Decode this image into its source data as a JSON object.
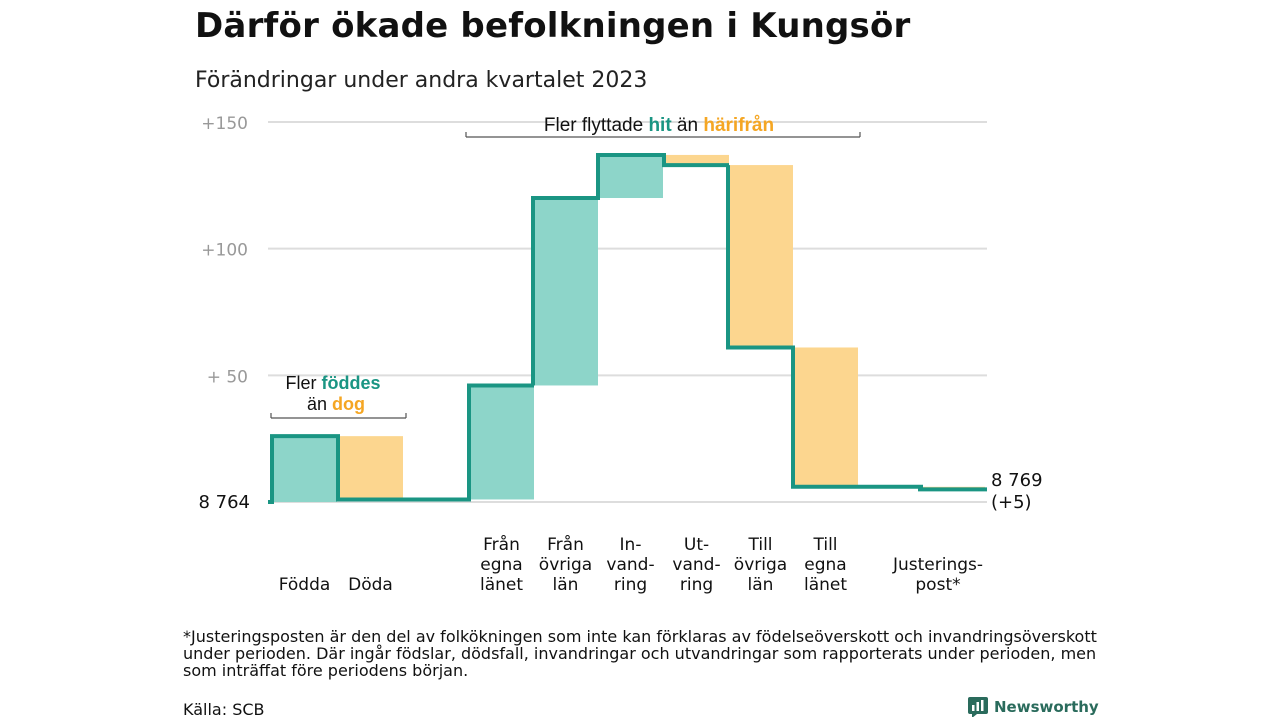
{
  "title": "Därför ökade befolkningen i Kungsör",
  "subtitle": "Förändringar under andra kvartalet 2023",
  "footnote": "*Justeringsposten är den del av folkökningen som inte kan förklaras av födelseöverskott och invandringsöverskott under perioden. Där ingår födslar, dödsfall, invandringar och utvandringar som rapporterats under perioden, men som inträffat före periodens början.",
  "source": "Källa: SCB",
  "logo_text": "Newsworthy",
  "colors": {
    "increase": "#8dd5c9",
    "decrease": "#fcd68f",
    "line": "#1a9583",
    "grid": "#dddddd",
    "teal_text": "#1a9583",
    "orange_text": "#f5a623"
  },
  "chart_data": {
    "type": "waterfall",
    "start_label": "8  764",
    "start_value": 8764,
    "end_label": [
      "8 769",
      "(+5)"
    ],
    "end_value": 8769,
    "y_ticks": [
      {
        "value": 150,
        "label": "+150"
      },
      {
        "value": 100,
        "label": "+100"
      },
      {
        "value": 50,
        "label": "+  50"
      }
    ],
    "ylim": [
      0,
      150
    ],
    "categories": [
      {
        "label": [
          "Födda"
        ],
        "type": "increase",
        "value": 26
      },
      {
        "label": [
          "Döda"
        ],
        "type": "decrease",
        "value": -25
      },
      {
        "label": [],
        "type": "gap",
        "value": 0
      },
      {
        "label": [
          "Från",
          "egna",
          "länet"
        ],
        "type": "increase",
        "value": 45
      },
      {
        "label": [
          "Från",
          "övriga",
          "län"
        ],
        "type": "increase",
        "value": 74
      },
      {
        "label": [
          "In-",
          "vand-",
          "ring"
        ],
        "type": "increase",
        "value": 17
      },
      {
        "label": [
          "Ut-",
          "vand-",
          "ring"
        ],
        "type": "decrease",
        "value": -4
      },
      {
        "label": [
          "Till",
          "övriga",
          "län"
        ],
        "type": "decrease",
        "value": -72
      },
      {
        "label": [
          "Till",
          "egna",
          "länet"
        ],
        "type": "decrease",
        "value": -55
      },
      {
        "label": [],
        "type": "gap",
        "value": 0
      },
      {
        "label": [
          "Justerings-",
          "post*"
        ],
        "type": "decrease",
        "value": -1
      }
    ],
    "annotations": {
      "births": {
        "line1_pre": "Fler ",
        "line1_hl": "föddes",
        "line2_pre": "än ",
        "line2_hl": "dog"
      },
      "migration": {
        "pre": "Fler flyttade ",
        "hl1": "hit",
        "mid": " än ",
        "hl2": "härifrån"
      }
    }
  }
}
